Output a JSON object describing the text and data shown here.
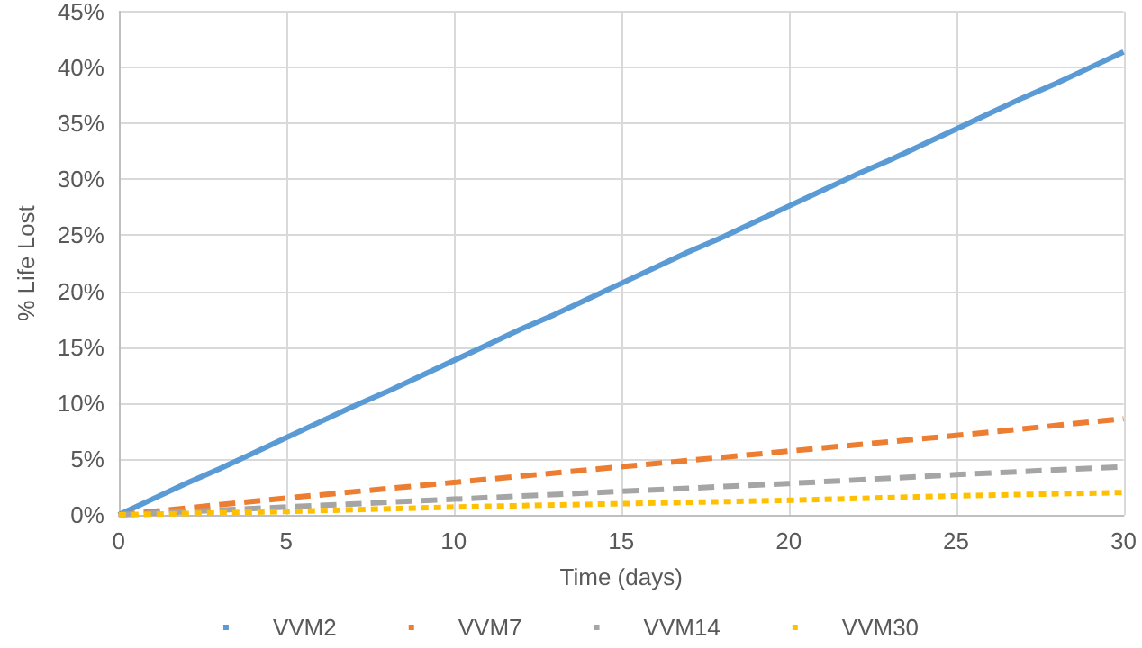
{
  "chart_data": {
    "type": "line",
    "xlabel": "Time (days)",
    "ylabel": "% Life Lost",
    "x": [
      0,
      1,
      2,
      3,
      4,
      5,
      6,
      7,
      8,
      9,
      10,
      11,
      12,
      13,
      14,
      15,
      16,
      17,
      18,
      19,
      20,
      21,
      22,
      23,
      24,
      25,
      26,
      27,
      28,
      29,
      30
    ],
    "series": [
      {
        "name": "VVM2",
        "color": "#5b9bd5",
        "line_style": "solid",
        "values": [
          0,
          1.4,
          2.8,
          4.1,
          5.5,
          6.9,
          8.3,
          9.7,
          11.0,
          12.4,
          13.8,
          15.2,
          16.6,
          17.9,
          19.3,
          20.7,
          22.1,
          23.5,
          24.8,
          26.2,
          27.6,
          29.0,
          30.4,
          31.7,
          33.1,
          34.5,
          35.9,
          37.3,
          38.6,
          40.0,
          41.4
        ]
      },
      {
        "name": "VVM7",
        "color": "#ed7d31",
        "line_style": "dashed",
        "x": [
          0,
          5,
          10,
          15,
          20,
          25,
          30
        ],
        "values": [
          0,
          1.5,
          2.9,
          4.3,
          5.7,
          7.1,
          8.6
        ]
      },
      {
        "name": "VVM14",
        "color": "#a5a5a5",
        "line_style": "dashed",
        "x": [
          0,
          5,
          10,
          15,
          20,
          25,
          30
        ],
        "values": [
          0,
          0.7,
          1.4,
          2.1,
          2.8,
          3.6,
          4.3
        ]
      },
      {
        "name": "VVM30",
        "color": "#ffc000",
        "line_style": "dotted",
        "x": [
          0,
          5,
          10,
          15,
          20,
          25,
          30
        ],
        "values": [
          0,
          0.3,
          0.7,
          1.0,
          1.3,
          1.7,
          2.0
        ]
      }
    ],
    "xlim": [
      0,
      30
    ],
    "xticks": [
      0,
      5,
      10,
      15,
      20,
      25,
      30
    ],
    "ylim": [
      0,
      45
    ],
    "yticks": [
      {
        "value": 0,
        "label": "0%"
      },
      {
        "value": 5,
        "label": "5%"
      },
      {
        "value": 10,
        "label": "10%"
      },
      {
        "value": 15,
        "label": "15%"
      },
      {
        "value": 20,
        "label": "20%"
      },
      {
        "value": 25,
        "label": "25%"
      },
      {
        "value": 30,
        "label": "30%"
      },
      {
        "value": 35,
        "label": "35%"
      },
      {
        "value": 40,
        "label": "40%"
      },
      {
        "value": 45,
        "label": "45%"
      }
    ],
    "grid": true,
    "legend": "bottom",
    "marker": "none"
  }
}
